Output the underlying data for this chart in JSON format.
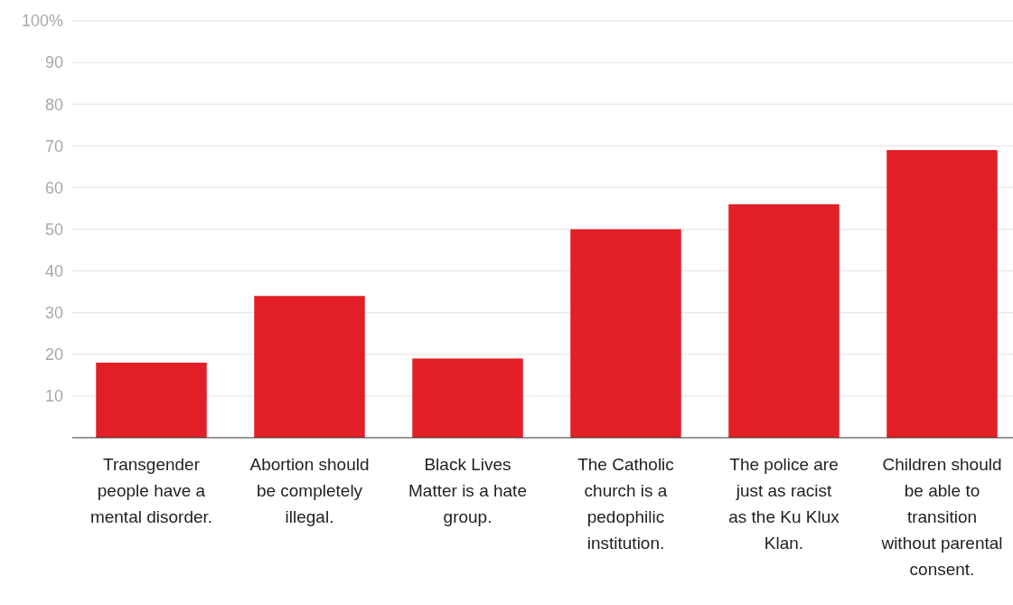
{
  "chart_data": {
    "type": "bar",
    "categories": [
      "Transgender people have a mental disorder.",
      "Abortion should be completely illegal.",
      "Black Lives Matter is a hate group.",
      "The Catholic church is a pedophilic institution.",
      "The police are just as racist as the Ku Klux Klan.",
      "Children should be able to transition without parental consent."
    ],
    "values": [
      18,
      34,
      19,
      50,
      56,
      69
    ],
    "color": "#e21f26",
    "ylim": [
      0,
      100
    ],
    "yticks": [
      10,
      20,
      30,
      40,
      50,
      60,
      70,
      80,
      90,
      {
        "value": 100,
        "label": "100%"
      }
    ],
    "grid": "y"
  }
}
